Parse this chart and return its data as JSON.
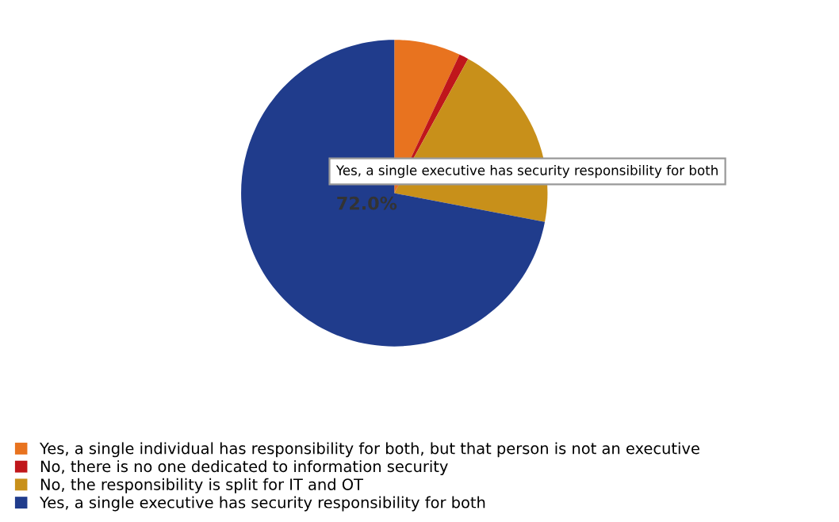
{
  "chart_data": {
    "type": "pie",
    "categories": [
      "Yes, a single individual has responsibility for both, but that person is not an executive",
      "No, there is no one dedicated to information security",
      "No, the responsibility is split for IT and OT",
      "Yes, a single executive has security responsibility for both"
    ],
    "values": [
      7,
      1,
      20,
      72.0
    ],
    "colors": [
      "#e8731f",
      "#c0161b",
      "#c8901a",
      "#203c8c"
    ],
    "value_labels": [
      null,
      null,
      null,
      "72.0%"
    ],
    "legend": "bottom left"
  }
}
